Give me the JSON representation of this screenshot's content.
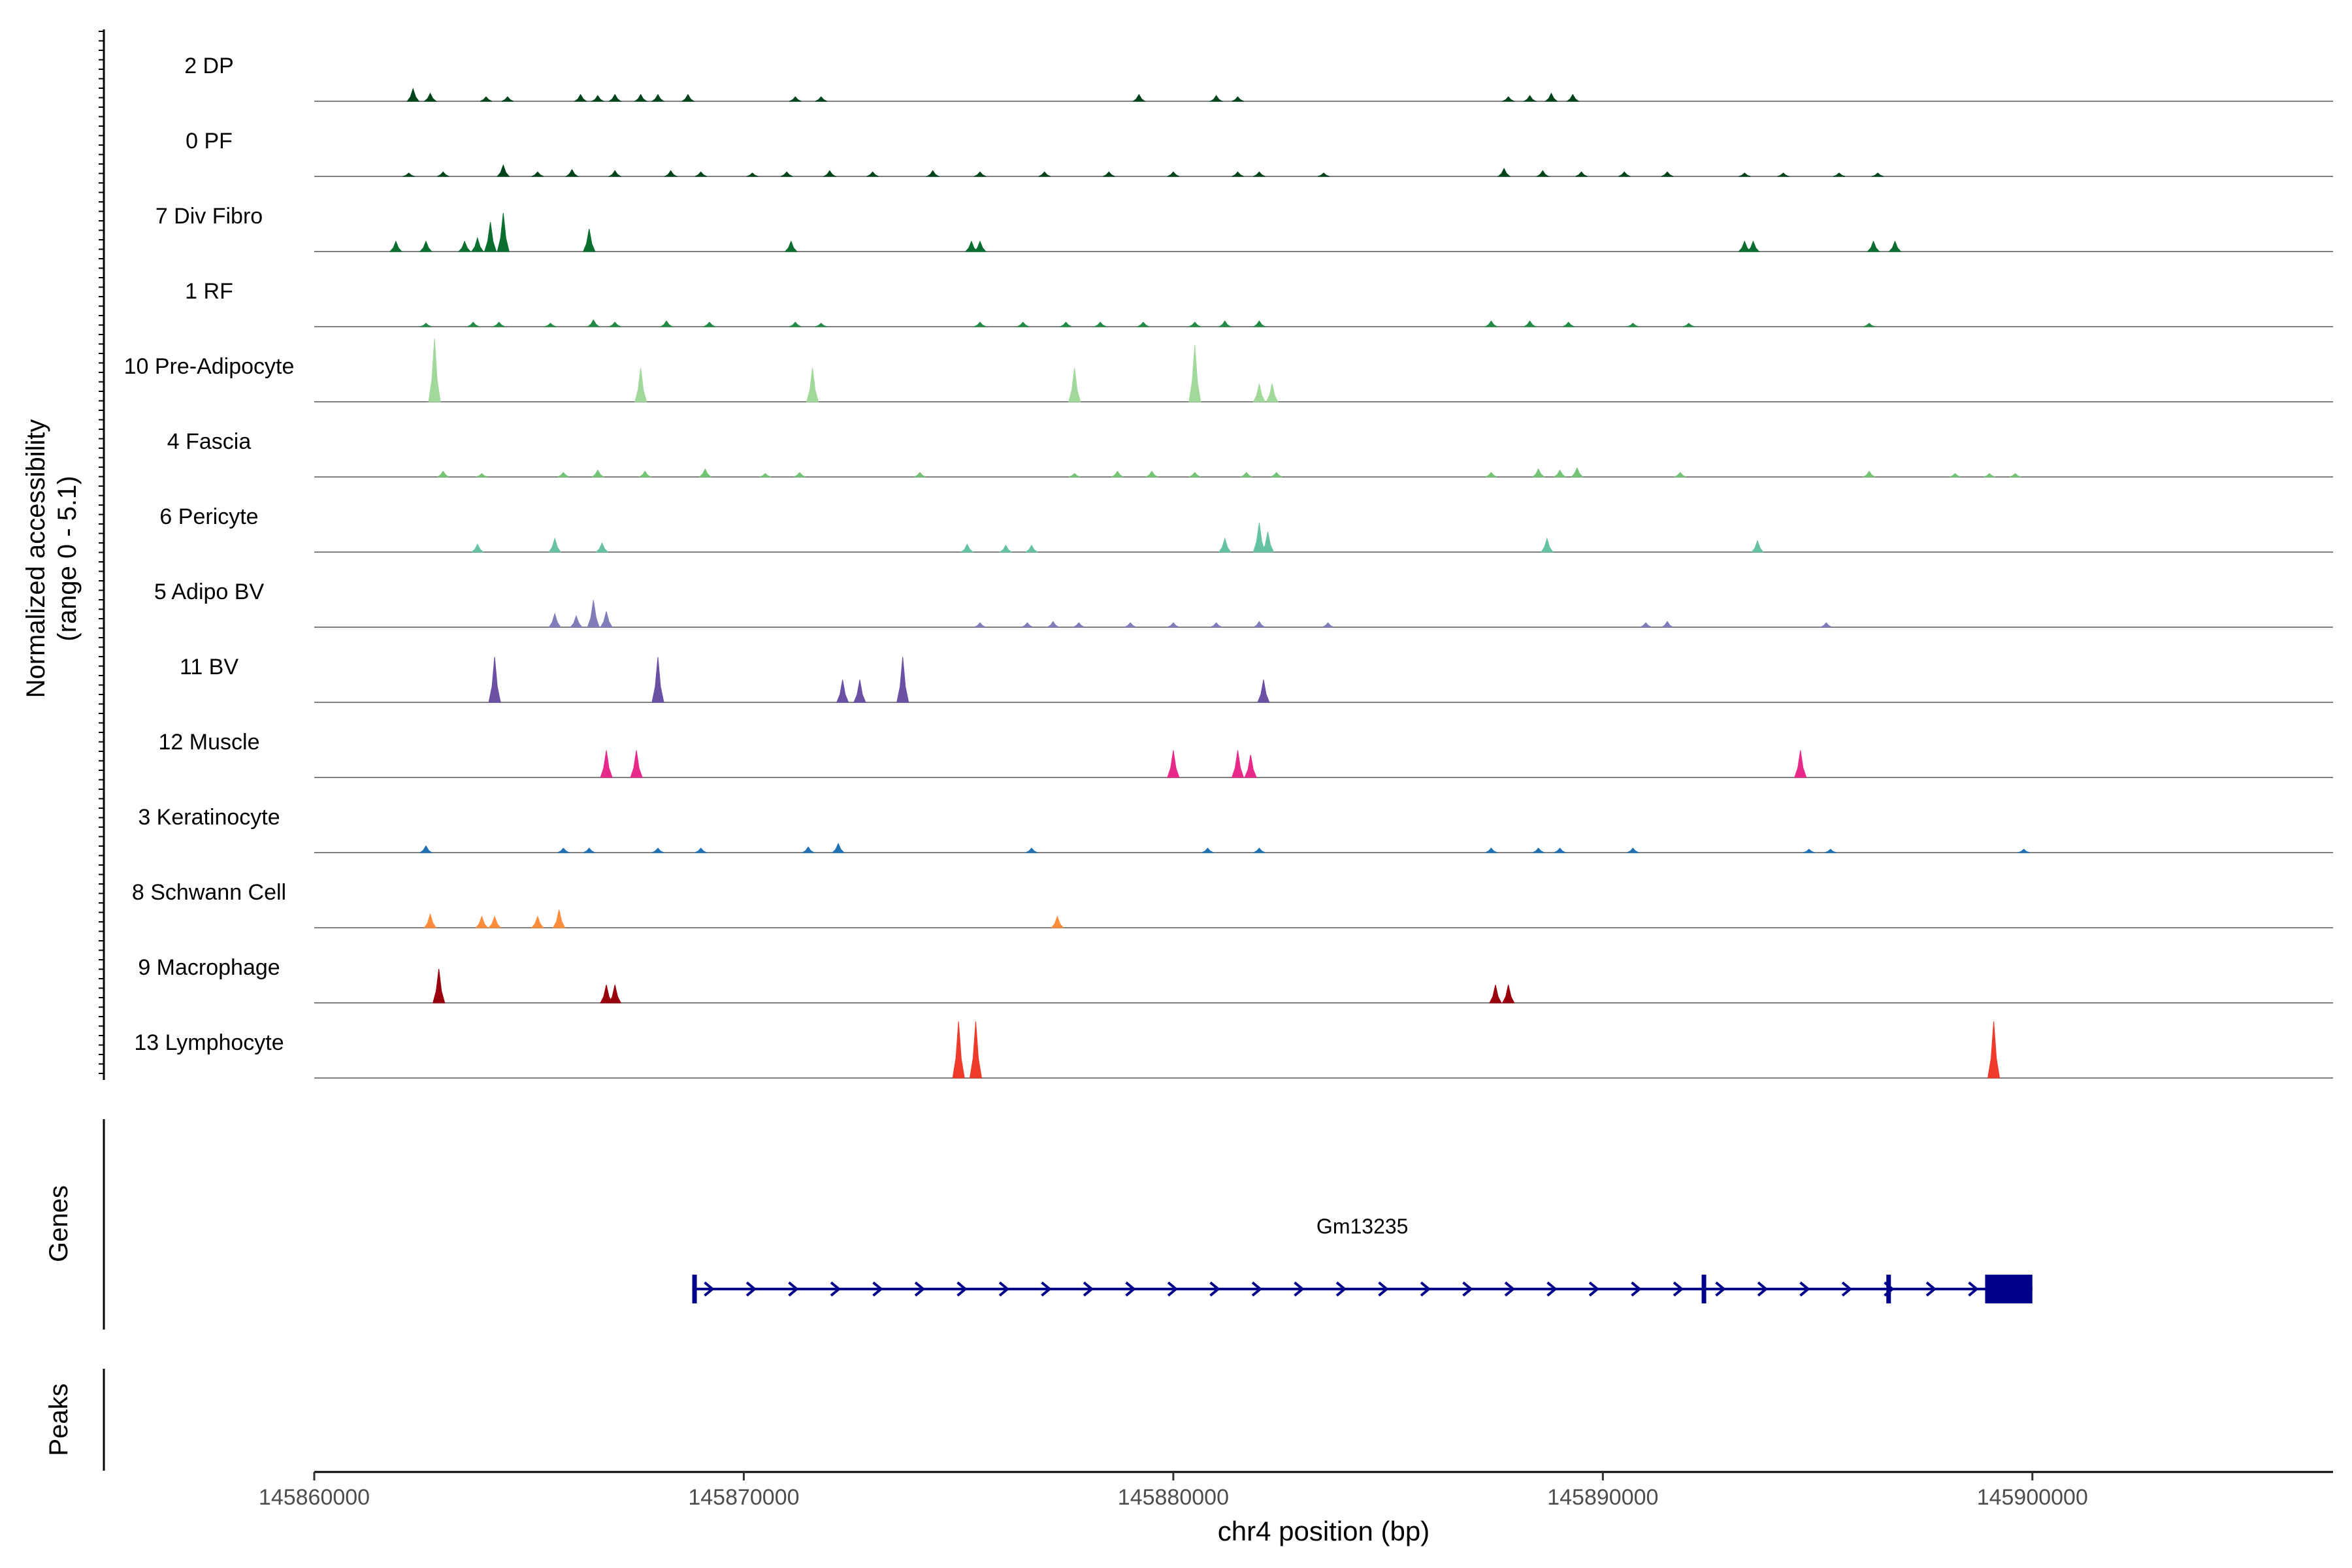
{
  "chart_data": {
    "type": "coverage-track",
    "region": {
      "chrom": "chr4",
      "start": 145860000,
      "end": 145907000
    },
    "xlabel": "chr4 position (bp)",
    "x_ticks": [
      145860000,
      145870000,
      145880000,
      145890000,
      145900000
    ],
    "x_tick_labels": [
      "145860000",
      "145870000",
      "145880000",
      "145890000",
      "145900000"
    ],
    "ylabel_line1": "Normalized accessibility",
    "ylabel_line2": "(range 0 - 5.1)",
    "ylim": [
      0,
      5.1
    ],
    "genes_panel_label": "Genes",
    "peaks_panel_label": "Peaks",
    "tracks": [
      {
        "label": "2 DP",
        "color": "#00441b",
        "peaks": [
          [
            145862300,
            0.55
          ],
          [
            145862700,
            0.35
          ],
          [
            145864000,
            0.2
          ],
          [
            145864500,
            0.2
          ],
          [
            145866200,
            0.3
          ],
          [
            145866600,
            0.25
          ],
          [
            145867000,
            0.3
          ],
          [
            145867600,
            0.3
          ],
          [
            145868000,
            0.3
          ],
          [
            145868700,
            0.3
          ],
          [
            145871200,
            0.2
          ],
          [
            145871800,
            0.2
          ],
          [
            145879200,
            0.3
          ],
          [
            145881000,
            0.25
          ],
          [
            145881500,
            0.2
          ],
          [
            145887800,
            0.2
          ],
          [
            145888300,
            0.25
          ],
          [
            145888800,
            0.35
          ],
          [
            145889300,
            0.3
          ]
        ]
      },
      {
        "label": "0 PF",
        "color": "#00441b",
        "peaks": [
          [
            145862200,
            0.15
          ],
          [
            145863000,
            0.2
          ],
          [
            145864400,
            0.5
          ],
          [
            145865200,
            0.2
          ],
          [
            145866000,
            0.3
          ],
          [
            145867000,
            0.25
          ],
          [
            145868300,
            0.25
          ],
          [
            145869000,
            0.2
          ],
          [
            145870200,
            0.15
          ],
          [
            145871000,
            0.2
          ],
          [
            145872000,
            0.25
          ],
          [
            145873000,
            0.2
          ],
          [
            145874400,
            0.25
          ],
          [
            145875500,
            0.2
          ],
          [
            145877000,
            0.2
          ],
          [
            145878500,
            0.2
          ],
          [
            145880000,
            0.2
          ],
          [
            145881500,
            0.2
          ],
          [
            145882000,
            0.2
          ],
          [
            145883500,
            0.15
          ],
          [
            145887700,
            0.35
          ],
          [
            145888600,
            0.25
          ],
          [
            145889500,
            0.2
          ],
          [
            145890500,
            0.2
          ],
          [
            145891500,
            0.2
          ],
          [
            145893300,
            0.15
          ],
          [
            145894200,
            0.15
          ],
          [
            145895500,
            0.15
          ],
          [
            145896400,
            0.15
          ]
        ]
      },
      {
        "label": "7 Div Fibro",
        "color": "#0a6e2f",
        "peaks": [
          [
            145861900,
            0.45
          ],
          [
            145862600,
            0.45
          ],
          [
            145863500,
            0.45
          ],
          [
            145863800,
            0.6
          ],
          [
            145864100,
            1.3
          ],
          [
            145864400,
            1.7
          ],
          [
            145866400,
            1.0
          ],
          [
            145871100,
            0.45
          ],
          [
            145875300,
            0.45
          ],
          [
            145875500,
            0.45
          ],
          [
            145893300,
            0.45
          ],
          [
            145893500,
            0.45
          ],
          [
            145896300,
            0.45
          ],
          [
            145896800,
            0.45
          ]
        ]
      },
      {
        "label": "1 RF",
        "color": "#238b45",
        "peaks": [
          [
            145862600,
            0.15
          ],
          [
            145863700,
            0.2
          ],
          [
            145864300,
            0.2
          ],
          [
            145865500,
            0.15
          ],
          [
            145866500,
            0.3
          ],
          [
            145867000,
            0.2
          ],
          [
            145868200,
            0.25
          ],
          [
            145869200,
            0.2
          ],
          [
            145871200,
            0.2
          ],
          [
            145871800,
            0.15
          ],
          [
            145875500,
            0.2
          ],
          [
            145876500,
            0.2
          ],
          [
            145877500,
            0.2
          ],
          [
            145878300,
            0.2
          ],
          [
            145879300,
            0.2
          ],
          [
            145880500,
            0.2
          ],
          [
            145881200,
            0.25
          ],
          [
            145882000,
            0.25
          ],
          [
            145887400,
            0.25
          ],
          [
            145888300,
            0.25
          ],
          [
            145889200,
            0.2
          ],
          [
            145890700,
            0.15
          ],
          [
            145892000,
            0.15
          ],
          [
            145896200,
            0.15
          ]
        ]
      },
      {
        "label": "10 Pre-Adipocyte",
        "color": "#a1d99b",
        "peaks": [
          [
            145862800,
            2.8
          ],
          [
            145867600,
            1.5
          ],
          [
            145871600,
            1.5
          ],
          [
            145877700,
            1.5
          ],
          [
            145880500,
            2.5
          ],
          [
            145882000,
            0.8
          ],
          [
            145882300,
            0.8
          ]
        ]
      },
      {
        "label": "4 Fascia",
        "color": "#74c476",
        "peaks": [
          [
            145863000,
            0.25
          ],
          [
            145863900,
            0.15
          ],
          [
            145865800,
            0.2
          ],
          [
            145866600,
            0.3
          ],
          [
            145867700,
            0.25
          ],
          [
            145869100,
            0.35
          ],
          [
            145870500,
            0.15
          ],
          [
            145871300,
            0.2
          ],
          [
            145874100,
            0.2
          ],
          [
            145877700,
            0.15
          ],
          [
            145878700,
            0.25
          ],
          [
            145879500,
            0.25
          ],
          [
            145880500,
            0.2
          ],
          [
            145881700,
            0.2
          ],
          [
            145882400,
            0.2
          ],
          [
            145887400,
            0.2
          ],
          [
            145888500,
            0.35
          ],
          [
            145889000,
            0.3
          ],
          [
            145889400,
            0.4
          ],
          [
            145891800,
            0.2
          ],
          [
            145896200,
            0.25
          ],
          [
            145898200,
            0.15
          ],
          [
            145899000,
            0.15
          ],
          [
            145899600,
            0.15
          ]
        ]
      },
      {
        "label": "6 Pericyte",
        "color": "#66c2a4",
        "peaks": [
          [
            145863800,
            0.35
          ],
          [
            145865600,
            0.6
          ],
          [
            145866700,
            0.4
          ],
          [
            145875200,
            0.35
          ],
          [
            145876100,
            0.3
          ],
          [
            145876700,
            0.3
          ],
          [
            145881200,
            0.6
          ],
          [
            145882000,
            1.3
          ],
          [
            145882200,
            0.9
          ],
          [
            145888700,
            0.6
          ],
          [
            145893600,
            0.5
          ]
        ]
      },
      {
        "label": "5 Adipo BV",
        "color": "#807dba",
        "peaks": [
          [
            145865600,
            0.6
          ],
          [
            145866100,
            0.5
          ],
          [
            145866500,
            1.2
          ],
          [
            145866800,
            0.7
          ],
          [
            145875500,
            0.2
          ],
          [
            145876600,
            0.2
          ],
          [
            145877200,
            0.25
          ],
          [
            145877800,
            0.2
          ],
          [
            145879000,
            0.2
          ],
          [
            145880000,
            0.2
          ],
          [
            145881000,
            0.2
          ],
          [
            145882000,
            0.25
          ],
          [
            145883600,
            0.2
          ],
          [
            145891000,
            0.2
          ],
          [
            145891500,
            0.25
          ],
          [
            145895200,
            0.2
          ]
        ]
      },
      {
        "label": "11 BV",
        "color": "#6a51a3",
        "peaks": [
          [
            145864200,
            2.0
          ],
          [
            145868000,
            2.0
          ],
          [
            145872300,
            1.0
          ],
          [
            145872700,
            1.0
          ],
          [
            145873700,
            2.0
          ],
          [
            145882100,
            1.0
          ]
        ]
      },
      {
        "label": "12 Muscle",
        "color": "#e7298a",
        "peaks": [
          [
            145866800,
            1.2
          ],
          [
            145867500,
            1.2
          ],
          [
            145880000,
            1.2
          ],
          [
            145881500,
            1.2
          ],
          [
            145881800,
            1.0
          ],
          [
            145894600,
            1.2
          ]
        ]
      },
      {
        "label": "3 Keratinocyte",
        "color": "#2171b5",
        "peaks": [
          [
            145862600,
            0.3
          ],
          [
            145865800,
            0.2
          ],
          [
            145866400,
            0.2
          ],
          [
            145868000,
            0.2
          ],
          [
            145869000,
            0.2
          ],
          [
            145871500,
            0.25
          ],
          [
            145872200,
            0.4
          ],
          [
            145876700,
            0.2
          ],
          [
            145880800,
            0.2
          ],
          [
            145882000,
            0.2
          ],
          [
            145887400,
            0.2
          ],
          [
            145888500,
            0.2
          ],
          [
            145889000,
            0.2
          ],
          [
            145890700,
            0.2
          ],
          [
            145894800,
            0.15
          ],
          [
            145895300,
            0.15
          ],
          [
            145899800,
            0.15
          ]
        ]
      },
      {
        "label": "8 Schwann Cell",
        "color": "#fd8d3c",
        "peaks": [
          [
            145862700,
            0.6
          ],
          [
            145863900,
            0.5
          ],
          [
            145864200,
            0.5
          ],
          [
            145865200,
            0.5
          ],
          [
            145865700,
            0.8
          ],
          [
            145877300,
            0.5
          ]
        ]
      },
      {
        "label": "9 Macrophage",
        "color": "#99000d",
        "peaks": [
          [
            145862900,
            1.5
          ],
          [
            145866800,
            0.8
          ],
          [
            145867000,
            0.8
          ],
          [
            145887500,
            0.8
          ],
          [
            145887800,
            0.8
          ]
        ]
      },
      {
        "label": "13 Lymphocyte",
        "color": "#ef3b2c",
        "peaks": [
          [
            145875000,
            2.5
          ],
          [
            145875400,
            2.5
          ],
          [
            145899100,
            2.5
          ]
        ]
      }
    ],
    "gene": {
      "name": "Gm13235",
      "color": "#00008b",
      "start": 145868800,
      "end": 145900000,
      "strand": "+",
      "exons": [
        [
          145868800,
          145868900
        ],
        [
          145892300,
          145892400
        ],
        [
          145896600,
          145896700
        ],
        [
          145898900,
          145900000
        ]
      ]
    }
  }
}
